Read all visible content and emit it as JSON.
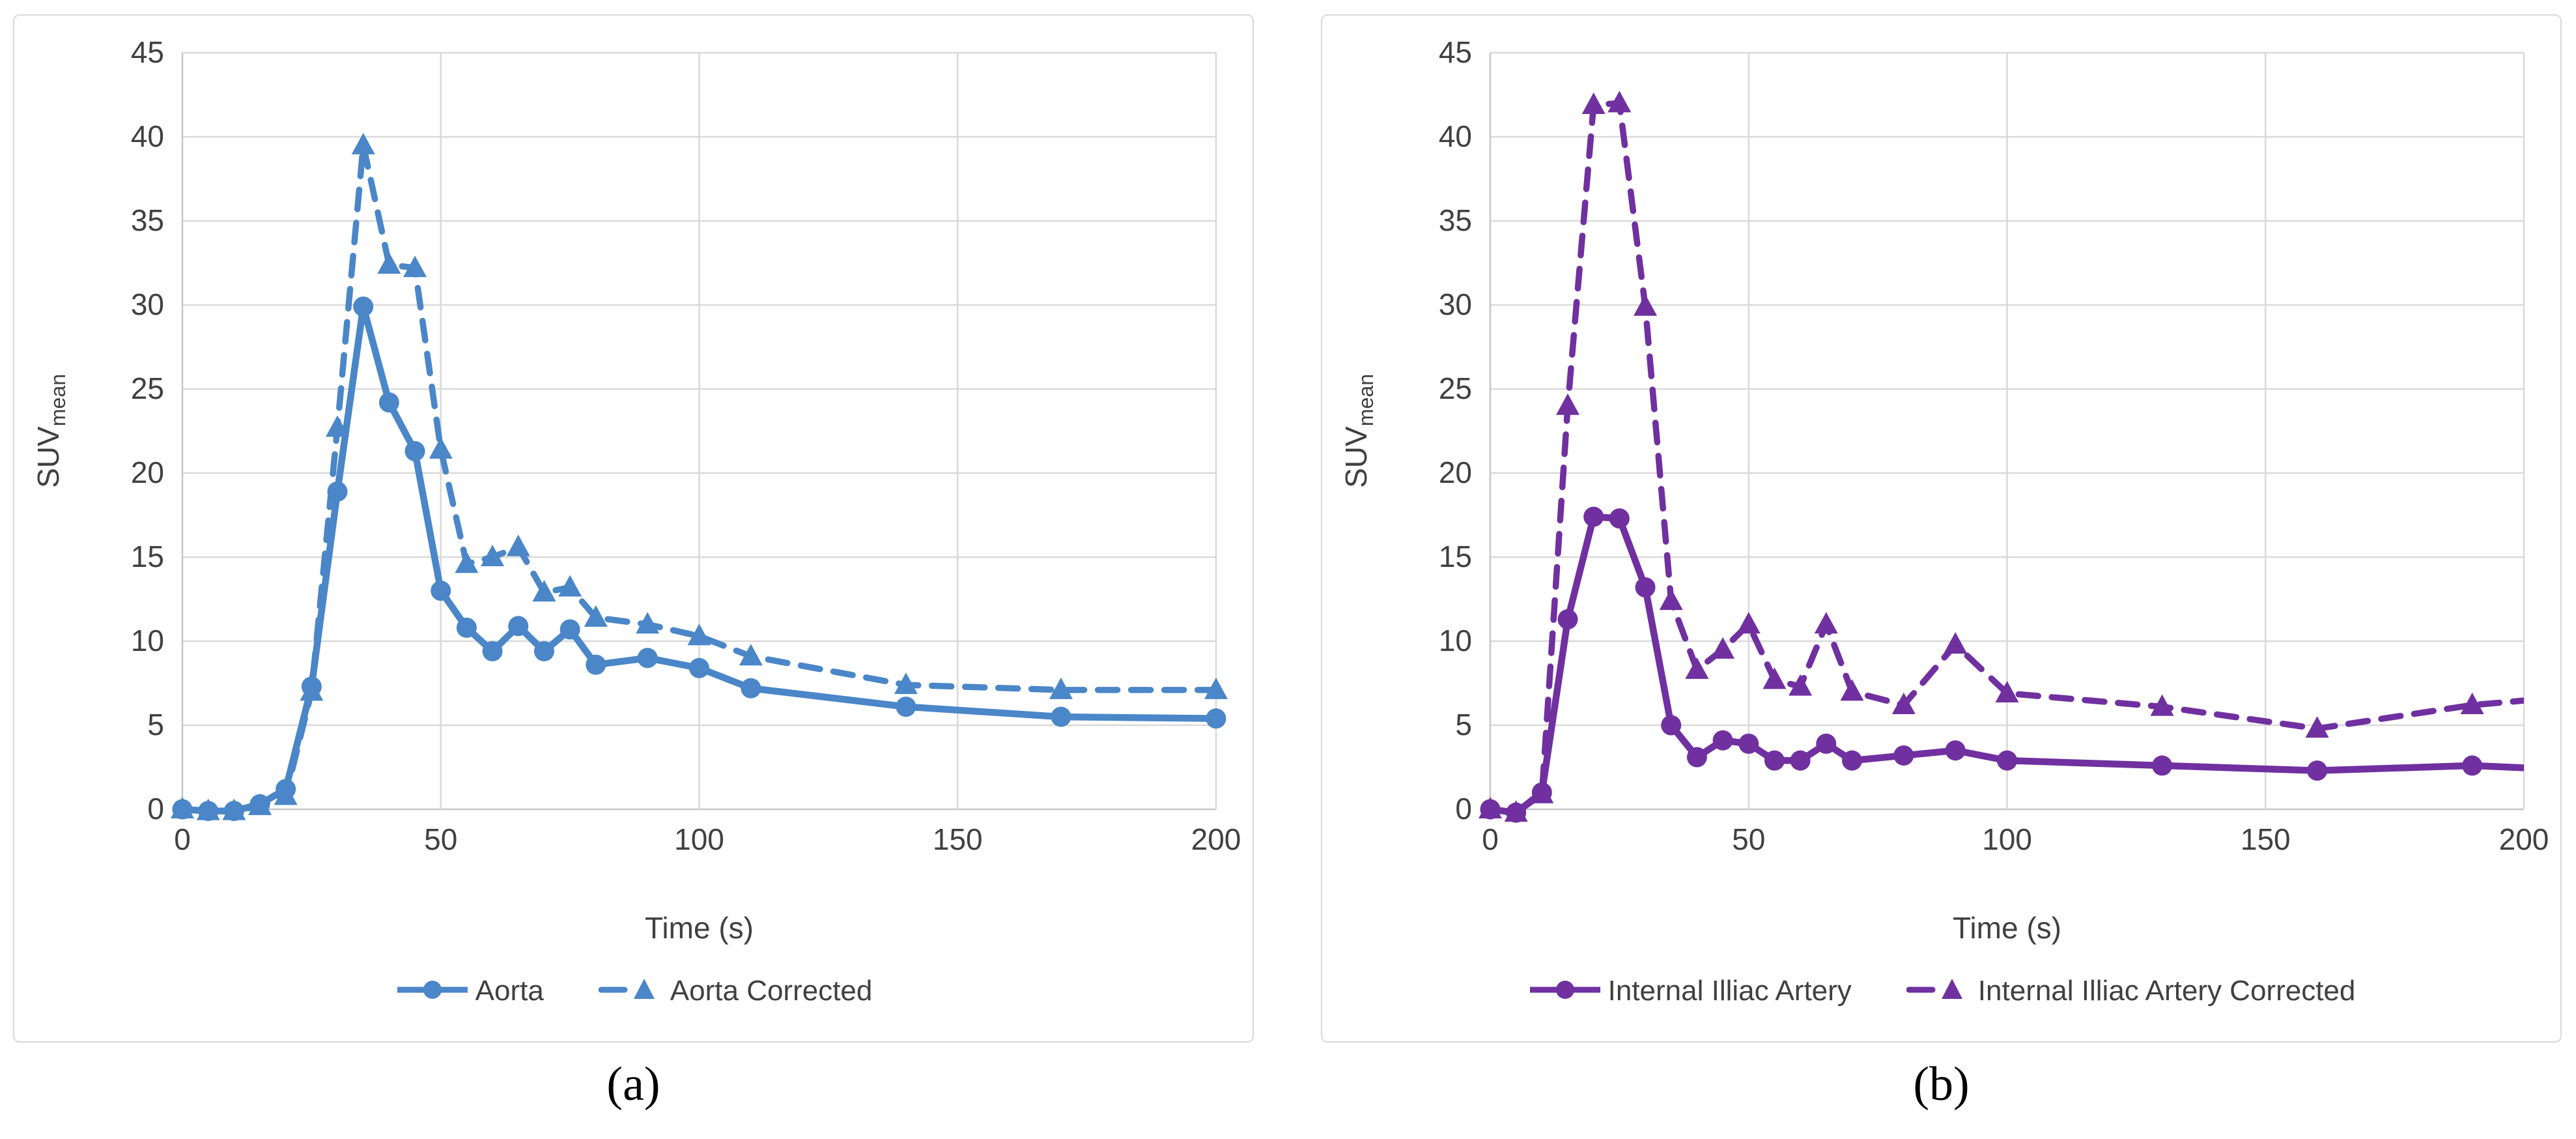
{
  "styles": {
    "background": "#ffffff",
    "panel_border": "#D9D9D9",
    "gridline": "#D9D9D9",
    "axis_line": "#C6C6C6",
    "tick_text": "#404040",
    "title_text": "#404040",
    "caption_text": "#000000",
    "accent_blue": "#4A86C8",
    "accent_purple": "#7030A0"
  },
  "chart_data": [
    {
      "id": "a",
      "type": "line",
      "caption": "(a)",
      "xlabel": "Time (s)",
      "ylabel": "SUV",
      "ylabel_sub": "mean",
      "xlim": [
        0,
        200
      ],
      "ylim": [
        0,
        45
      ],
      "x_ticks": [
        0,
        50,
        100,
        150,
        200
      ],
      "y_ticks": [
        0,
        5,
        10,
        15,
        20,
        25,
        30,
        35,
        40,
        45
      ],
      "grid": true,
      "legend_position": "bottom",
      "color": "#4A86C8",
      "series": [
        {
          "name": "Aorta",
          "style": "solid",
          "marker": "circle",
          "x": [
            0,
            5,
            10,
            15,
            20,
            25,
            30,
            35,
            40,
            45,
            50,
            55,
            60,
            65,
            70,
            75,
            80,
            90,
            100,
            110,
            140,
            170,
            200
          ],
          "y": [
            0,
            -0.1,
            -0.1,
            0.3,
            1.2,
            7.3,
            18.9,
            29.9,
            24.2,
            21.3,
            13.0,
            10.8,
            9.4,
            10.9,
            9.4,
            10.7,
            8.6,
            9.0,
            8.4,
            7.2,
            6.1,
            5.5,
            5.4
          ]
        },
        {
          "name": "Aorta Corrected",
          "style": "dashed",
          "marker": "triangle",
          "x": [
            0,
            5,
            10,
            15,
            20,
            25,
            30,
            35,
            40,
            45,
            50,
            55,
            60,
            65,
            70,
            75,
            80,
            90,
            100,
            110,
            140,
            170,
            200
          ],
          "y": [
            0,
            -0.1,
            -0.1,
            0.2,
            0.8,
            7.0,
            22.7,
            39.5,
            32.4,
            32.2,
            21.4,
            14.6,
            15.0,
            15.6,
            12.9,
            13.2,
            11.4,
            11.0,
            10.3,
            9.1,
            7.4,
            7.1,
            7.1
          ]
        }
      ]
    },
    {
      "id": "b",
      "type": "line",
      "caption": "(b)",
      "xlabel": "Time (s)",
      "ylabel": "SUV",
      "ylabel_sub": "mean",
      "xlim": [
        0,
        200
      ],
      "ylim": [
        0,
        45
      ],
      "x_ticks": [
        0,
        50,
        100,
        150,
        200
      ],
      "y_ticks": [
        0,
        5,
        10,
        15,
        20,
        25,
        30,
        35,
        40,
        45
      ],
      "grid": true,
      "legend_position": "bottom",
      "color": "#7030A0",
      "series": [
        {
          "name": "Internal Illiac Artery",
          "style": "solid",
          "marker": "circle",
          "x": [
            0,
            5,
            10,
            15,
            20,
            25,
            30,
            35,
            40,
            45,
            50,
            55,
            60,
            65,
            70,
            80,
            90,
            100,
            130,
            160,
            190
          ],
          "y": [
            0,
            -0.2,
            1.0,
            11.3,
            17.4,
            17.3,
            13.2,
            5.0,
            3.1,
            4.1,
            3.9,
            2.9,
            2.9,
            3.9,
            2.9,
            3.2,
            3.5,
            2.9,
            2.6,
            2.3,
            2.6
          ],
          "extend": {
            "x": 205,
            "y": 2.4
          }
        },
        {
          "name": "Internal Illiac Artery Corrected",
          "style": "dashed",
          "marker": "triangle",
          "x": [
            0,
            5,
            10,
            15,
            20,
            25,
            30,
            35,
            40,
            45,
            50,
            55,
            60,
            65,
            70,
            80,
            90,
            100,
            130,
            160,
            190
          ],
          "y": [
            0,
            -0.2,
            0.9,
            24.0,
            41.9,
            42.0,
            29.9,
            12.4,
            8.3,
            9.5,
            11.0,
            7.7,
            7.3,
            11.0,
            7.0,
            6.2,
            9.8,
            6.9,
            6.1,
            4.8,
            6.2
          ],
          "extend": {
            "x": 205,
            "y": 6.6
          }
        }
      ]
    }
  ]
}
